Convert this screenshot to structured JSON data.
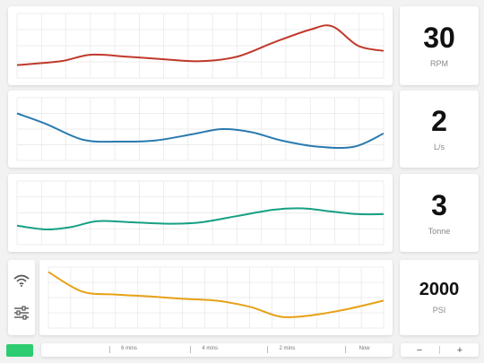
{
  "panels": [
    {
      "value": "30",
      "unit": "RPM",
      "color": "#c0392b",
      "series": [
        [
          0,
          20
        ],
        [
          0.12,
          26
        ],
        [
          0.2,
          36
        ],
        [
          0.3,
          33
        ],
        [
          0.4,
          29
        ],
        [
          0.5,
          26
        ],
        [
          0.6,
          33
        ],
        [
          0.7,
          55
        ],
        [
          0.8,
          75
        ],
        [
          0.86,
          80
        ],
        [
          0.93,
          50
        ],
        [
          1,
          42
        ]
      ]
    },
    {
      "value": "2",
      "unit": "L/s",
      "color": "#2a7ab0",
      "series": [
        [
          0,
          75
        ],
        [
          0.08,
          58
        ],
        [
          0.18,
          33
        ],
        [
          0.28,
          30
        ],
        [
          0.38,
          32
        ],
        [
          0.48,
          42
        ],
        [
          0.56,
          50
        ],
        [
          0.64,
          45
        ],
        [
          0.72,
          32
        ],
        [
          0.82,
          22
        ],
        [
          0.92,
          22
        ],
        [
          1,
          43
        ]
      ]
    },
    {
      "value": "3",
      "unit": "Tonne",
      "color": "#16a085",
      "series": [
        [
          0,
          30
        ],
        [
          0.08,
          24
        ],
        [
          0.15,
          28
        ],
        [
          0.22,
          37
        ],
        [
          0.32,
          35
        ],
        [
          0.42,
          33
        ],
        [
          0.5,
          35
        ],
        [
          0.6,
          45
        ],
        [
          0.7,
          55
        ],
        [
          0.78,
          57
        ],
        [
          0.86,
          52
        ],
        [
          0.93,
          48
        ],
        [
          1,
          48
        ]
      ]
    },
    {
      "value": "2000",
      "unit": "PSI",
      "color": "#e6a117",
      "series": [
        [
          0,
          92
        ],
        [
          0.1,
          60
        ],
        [
          0.2,
          55
        ],
        [
          0.3,
          52
        ],
        [
          0.4,
          48
        ],
        [
          0.5,
          45
        ],
        [
          0.6,
          35
        ],
        [
          0.68,
          20
        ],
        [
          0.73,
          18
        ],
        [
          0.8,
          22
        ],
        [
          0.9,
          32
        ],
        [
          1,
          45
        ]
      ]
    }
  ],
  "timeline": {
    "labels": [
      {
        "text": "6 mins",
        "pos": 0.25
      },
      {
        "text": "4 mins",
        "pos": 0.48
      },
      {
        "text": "2 mins",
        "pos": 0.7
      },
      {
        "text": "Now",
        "pos": 0.92
      }
    ]
  },
  "zoom": {
    "minus": "−",
    "plus": "+"
  },
  "icons": {
    "wifi": "wifi-icon",
    "settings": "sliders-icon"
  },
  "colors": {
    "play": "#2ecc71",
    "grid": "#e6e6e6"
  }
}
